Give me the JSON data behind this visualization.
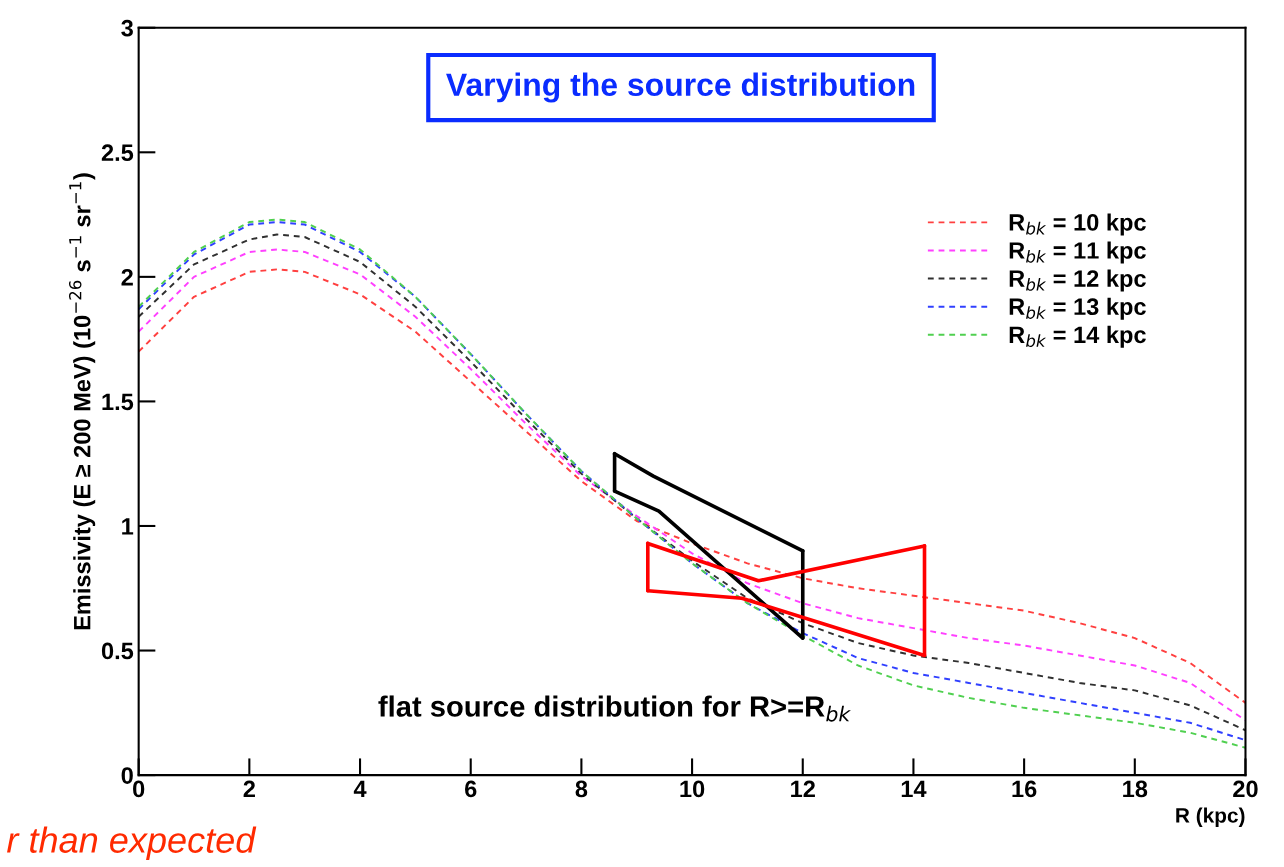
{
  "chart_data": {
    "type": "line",
    "title": "Varying the source distribution",
    "xlabel": "R (kpc)",
    "ylabel": "Emissivity (E ≥ 200 MeV) (10$^{−26}$ s$^{−1}$ sr$^{−1}$)",
    "x": [
      0,
      1,
      2,
      2.5,
      3,
      4,
      5,
      6,
      7,
      8,
      9,
      10,
      11,
      12,
      13,
      14,
      15,
      16,
      17,
      18,
      19,
      20
    ],
    "xlim": [
      0,
      20
    ],
    "xticks": [
      0,
      2,
      4,
      6,
      8,
      10,
      12,
      14,
      16,
      18,
      20
    ],
    "ylim": [
      0,
      3
    ],
    "yticks": [
      0,
      0.5,
      1,
      1.5,
      2,
      2.5,
      3
    ],
    "grid": false,
    "legend": "top right",
    "line_style": "dashed",
    "marker": "none",
    "series": [
      {
        "name": "R$_{bk}$ = 10 kpc",
        "color": "#ff4040",
        "values": [
          1.7,
          1.92,
          2.02,
          2.03,
          2.02,
          1.93,
          1.78,
          1.58,
          1.38,
          1.18,
          1.02,
          0.93,
          0.85,
          0.79,
          0.75,
          0.72,
          0.69,
          0.66,
          0.61,
          0.55,
          0.45,
          0.29
        ]
      },
      {
        "name": "R$_{bk}$ = 11 kpc",
        "color": "#ff40ff",
        "values": [
          1.78,
          2.0,
          2.1,
          2.11,
          2.1,
          2.01,
          1.84,
          1.63,
          1.41,
          1.2,
          1.04,
          0.89,
          0.77,
          0.69,
          0.63,
          0.59,
          0.55,
          0.52,
          0.48,
          0.44,
          0.37,
          0.22
        ]
      },
      {
        "name": "R$_{bk}$ = 12 kpc",
        "color": "#303030",
        "values": [
          1.84,
          2.05,
          2.15,
          2.17,
          2.16,
          2.06,
          1.88,
          1.66,
          1.43,
          1.21,
          1.03,
          0.86,
          0.71,
          0.61,
          0.53,
          0.48,
          0.45,
          0.41,
          0.37,
          0.34,
          0.28,
          0.18
        ]
      },
      {
        "name": "R$_{bk}$ = 13 kpc",
        "color": "#3040ff",
        "values": [
          1.87,
          2.09,
          2.21,
          2.22,
          2.21,
          2.1,
          1.92,
          1.69,
          1.45,
          1.22,
          1.03,
          0.85,
          0.69,
          0.57,
          0.47,
          0.41,
          0.37,
          0.33,
          0.29,
          0.25,
          0.21,
          0.14
        ]
      },
      {
        "name": "R$_{bk}$ = 14 kpc",
        "color": "#50d050",
        "values": [
          1.88,
          2.1,
          2.22,
          2.23,
          2.22,
          2.11,
          1.92,
          1.69,
          1.45,
          1.22,
          1.03,
          0.85,
          0.69,
          0.56,
          0.44,
          0.36,
          0.31,
          0.27,
          0.24,
          0.21,
          0.17,
          0.11
        ]
      },
      {
        "color": "#000000",
        "line_style": "solid",
        "x": [
          8.6,
          9.3,
          12
        ],
        "values": [
          1.29,
          1.2,
          0.9
        ]
      },
      {
        "color": "#000000",
        "line_style": "solid",
        "x": [
          8.6,
          9.4,
          12
        ],
        "values": [
          1.14,
          1.06,
          0.55
        ]
      },
      {
        "color": "#000000",
        "line_style": "solid",
        "x": [
          8.6,
          8.6
        ],
        "values": [
          1.14,
          1.29
        ]
      },
      {
        "color": "#000000",
        "line_style": "solid",
        "x": [
          12,
          12
        ],
        "values": [
          0.55,
          0.9
        ]
      },
      {
        "color": "#ff0000",
        "line_style": "solid",
        "x": [
          9.2,
          11.2,
          14.2
        ],
        "values": [
          0.93,
          0.78,
          0.92
        ]
      },
      {
        "color": "#ff0000",
        "line_style": "solid",
        "x": [
          9.2,
          10.9,
          14.2
        ],
        "values": [
          0.74,
          0.71,
          0.48
        ]
      },
      {
        "color": "#ff0000",
        "line_style": "solid",
        "x": [
          9.2,
          9.2
        ],
        "values": [
          0.74,
          0.93
        ]
      },
      {
        "color": "#ff0000",
        "line_style": "solid",
        "x": [
          14.2,
          14.2
        ],
        "values": [
          0.48,
          0.92
        ]
      }
    ],
    "annotations": [
      "flat source distribution for R>=R$_{bk}$",
      "r than expected"
    ]
  }
}
